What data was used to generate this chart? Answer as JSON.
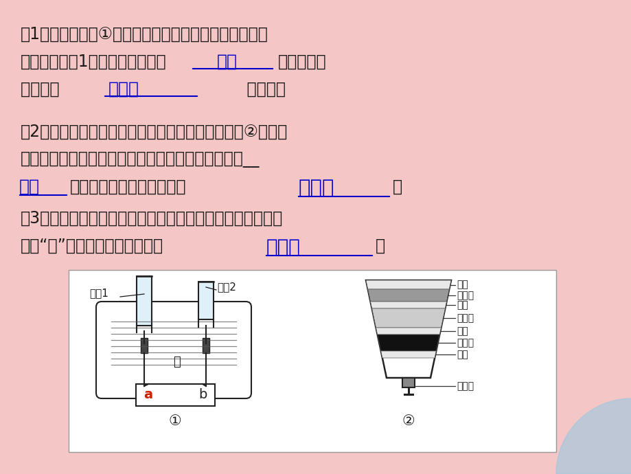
{
  "bg_color": "#F5C6C6",
  "text_color_black": "#1a1a1a",
  "text_color_blue": "#0000CC",
  "text_color_red": "#CC0000",
  "para1_line1": "（1）小刚利用图①所示的装置探究水的组成。通电一段",
  "para1_line2_prefix": "时间后，试剳1中所收集的气体为",
  "para1_line2_answer": "氢气",
  "para1_line2_suffix": "，该实验说",
  "para1_line3_prefix": "明水是由  ",
  "para1_line3_answer": "氢和氧",
  "para1_line3_suffix": "         组成的。",
  "para2_line1": "（2）小刚为了净化收集到的雨水，自制了一个如图②所示的",
  "para2_line2": "简易净水器，其中小卵石、石英沙和膨松棉的作用是__",
  "para2_line3_answer1": "过滤",
  "para2_line3_mid": "，起吸附异味和色素的物是",
  "para2_line3_answer2": "活性炭",
  "para2_line3_end": "。",
  "para3_line1": "（3）矿泉水、蒸馏水、自来水和净化后的雨水都是生活中常",
  "para3_line2_prefix": "见的“水”，其中属于纯净物的是",
  "para3_line2_answer": "蒸馏水",
  "para3_line2_suffix": "。",
  "diagram_bg": "#FFFFFF",
  "fontsize_main": 17,
  "fontsize_diagram": 11,
  "corner_color": "#a0c8e0"
}
